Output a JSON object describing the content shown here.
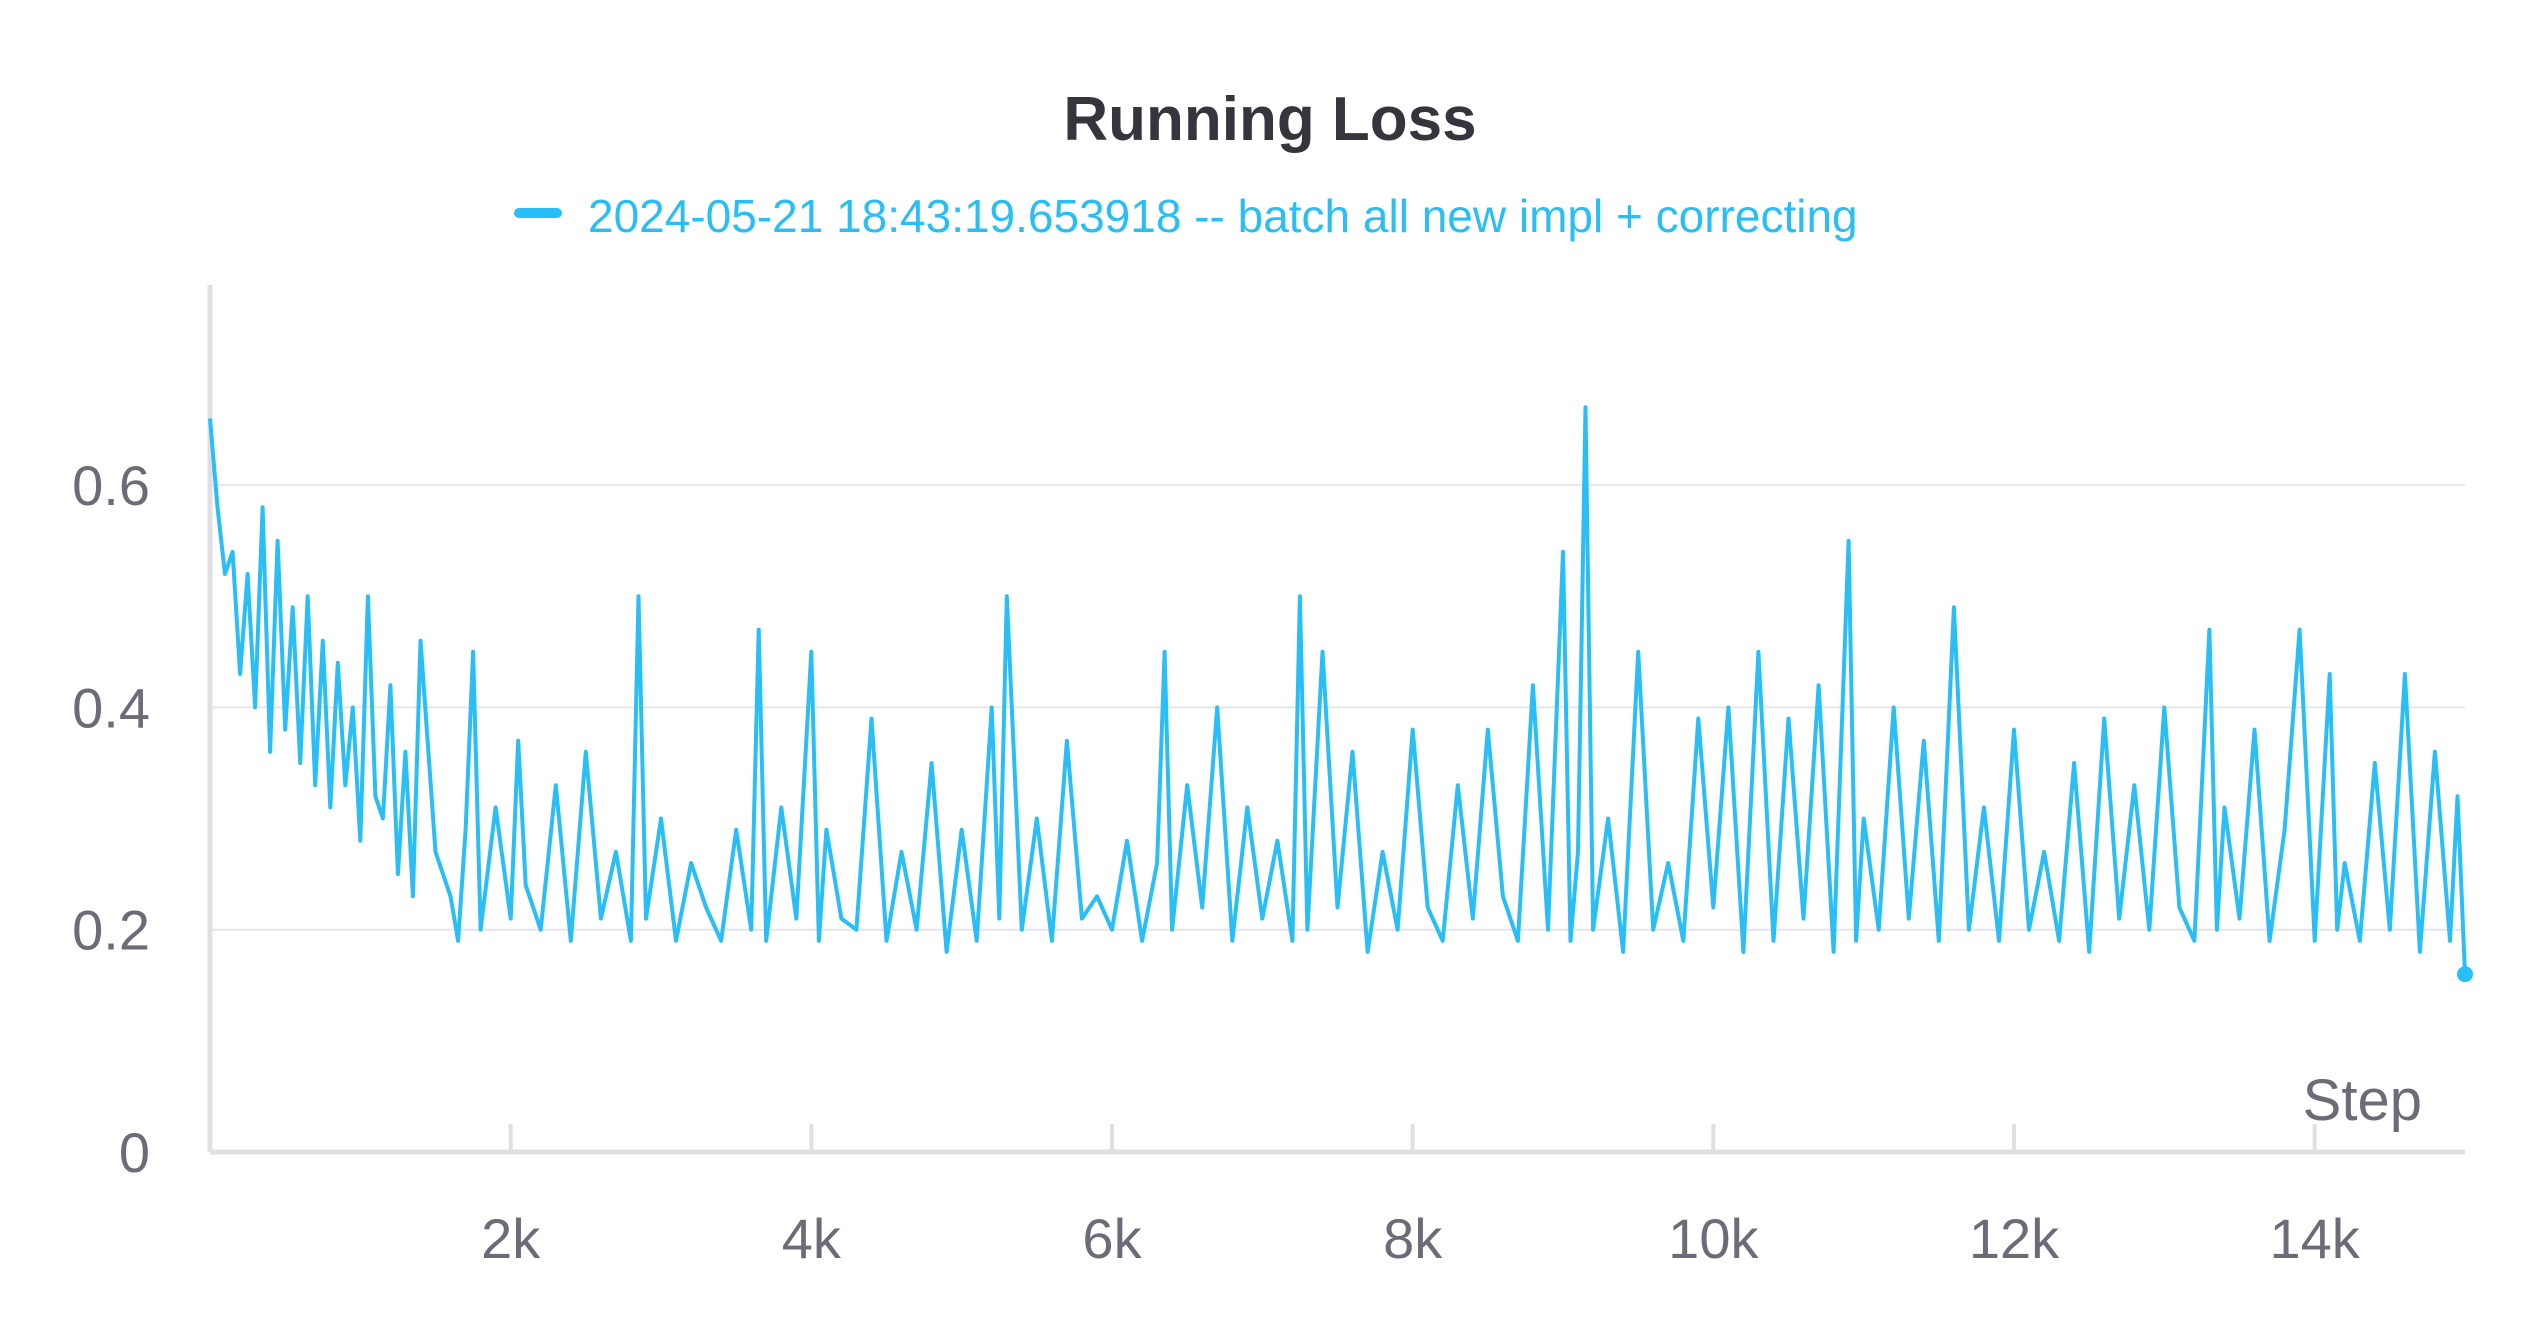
{
  "chart_data": {
    "type": "line",
    "title": "Running Loss",
    "xlabel": "Step",
    "ylabel": "",
    "xlim": [
      0,
      15000
    ],
    "ylim": [
      0,
      0.78
    ],
    "x_ticks": [
      {
        "value": 2000,
        "label": "2k"
      },
      {
        "value": 4000,
        "label": "4k"
      },
      {
        "value": 6000,
        "label": "6k"
      },
      {
        "value": 8000,
        "label": "8k"
      },
      {
        "value": 10000,
        "label": "10k"
      },
      {
        "value": 12000,
        "label": "12k"
      },
      {
        "value": 14000,
        "label": "14k"
      }
    ],
    "y_ticks": [
      {
        "value": 0,
        "label": "0"
      },
      {
        "value": 0.2,
        "label": "0.2"
      },
      {
        "value": 0.4,
        "label": "0.4"
      },
      {
        "value": 0.6,
        "label": "0.6"
      }
    ],
    "grid": true,
    "legend_position": "top-center",
    "series": [
      {
        "name": "2024-05-21 18:43:19.653918 -- batch all new impl + correcting",
        "color": "#29bef5",
        "x": [
          0,
          50,
          100,
          150,
          200,
          250,
          300,
          350,
          400,
          450,
          500,
          550,
          600,
          650,
          700,
          750,
          800,
          850,
          900,
          950,
          1000,
          1050,
          1100,
          1150,
          1200,
          1250,
          1300,
          1350,
          1400,
          1500,
          1600,
          1650,
          1700,
          1750,
          1800,
          1900,
          2000,
          2050,
          2100,
          2200,
          2300,
          2400,
          2500,
          2600,
          2700,
          2800,
          2850,
          2900,
          3000,
          3100,
          3200,
          3300,
          3400,
          3500,
          3600,
          3650,
          3700,
          3800,
          3900,
          4000,
          4050,
          4100,
          4200,
          4300,
          4400,
          4500,
          4600,
          4700,
          4800,
          4900,
          5000,
          5100,
          5200,
          5250,
          5300,
          5400,
          5500,
          5600,
          5700,
          5800,
          5900,
          6000,
          6100,
          6200,
          6300,
          6350,
          6400,
          6500,
          6600,
          6700,
          6800,
          6900,
          7000,
          7100,
          7200,
          7250,
          7300,
          7400,
          7500,
          7600,
          7700,
          7800,
          7900,
          8000,
          8100,
          8200,
          8300,
          8400,
          8500,
          8600,
          8700,
          8800,
          8900,
          9000,
          9050,
          9100,
          9150,
          9200,
          9300,
          9400,
          9500,
          9600,
          9700,
          9800,
          9900,
          10000,
          10100,
          10200,
          10300,
          10400,
          10500,
          10600,
          10700,
          10800,
          10900,
          10950,
          11000,
          11100,
          11200,
          11300,
          11400,
          11500,
          11600,
          11700,
          11800,
          11900,
          12000,
          12100,
          12200,
          12300,
          12400,
          12500,
          12600,
          12700,
          12800,
          12900,
          13000,
          13100,
          13200,
          13300,
          13350,
          13400,
          13500,
          13600,
          13700,
          13800,
          13900,
          14000,
          14100,
          14150,
          14200,
          14300,
          14400,
          14500,
          14600,
          14700,
          14800,
          14900,
          14950,
          15000
        ],
        "y": [
          0.66,
          0.58,
          0.52,
          0.54,
          0.43,
          0.52,
          0.4,
          0.58,
          0.36,
          0.55,
          0.38,
          0.49,
          0.35,
          0.5,
          0.33,
          0.46,
          0.31,
          0.44,
          0.33,
          0.4,
          0.28,
          0.5,
          0.32,
          0.3,
          0.42,
          0.25,
          0.36,
          0.23,
          0.46,
          0.27,
          0.23,
          0.19,
          0.29,
          0.45,
          0.2,
          0.31,
          0.21,
          0.37,
          0.24,
          0.2,
          0.33,
          0.19,
          0.36,
          0.21,
          0.27,
          0.19,
          0.5,
          0.21,
          0.3,
          0.19,
          0.26,
          0.22,
          0.19,
          0.29,
          0.2,
          0.47,
          0.19,
          0.31,
          0.21,
          0.45,
          0.19,
          0.29,
          0.21,
          0.2,
          0.39,
          0.19,
          0.27,
          0.2,
          0.35,
          0.18,
          0.29,
          0.19,
          0.4,
          0.21,
          0.5,
          0.2,
          0.3,
          0.19,
          0.37,
          0.21,
          0.23,
          0.2,
          0.28,
          0.19,
          0.26,
          0.45,
          0.2,
          0.33,
          0.22,
          0.4,
          0.19,
          0.31,
          0.21,
          0.28,
          0.19,
          0.5,
          0.2,
          0.45,
          0.22,
          0.36,
          0.18,
          0.27,
          0.2,
          0.38,
          0.22,
          0.19,
          0.33,
          0.21,
          0.38,
          0.23,
          0.19,
          0.42,
          0.2,
          0.54,
          0.19,
          0.27,
          0.67,
          0.2,
          0.3,
          0.18,
          0.45,
          0.2,
          0.26,
          0.19,
          0.39,
          0.22,
          0.4,
          0.18,
          0.45,
          0.19,
          0.39,
          0.21,
          0.42,
          0.18,
          0.55,
          0.19,
          0.3,
          0.2,
          0.4,
          0.21,
          0.37,
          0.19,
          0.49,
          0.2,
          0.31,
          0.19,
          0.38,
          0.2,
          0.27,
          0.19,
          0.35,
          0.18,
          0.39,
          0.21,
          0.33,
          0.2,
          0.4,
          0.22,
          0.19,
          0.47,
          0.2,
          0.31,
          0.21,
          0.38,
          0.19,
          0.29,
          0.47,
          0.19,
          0.43,
          0.2,
          0.26,
          0.19,
          0.35,
          0.2,
          0.43,
          0.18,
          0.36,
          0.19,
          0.32,
          0.16
        ]
      }
    ]
  }
}
